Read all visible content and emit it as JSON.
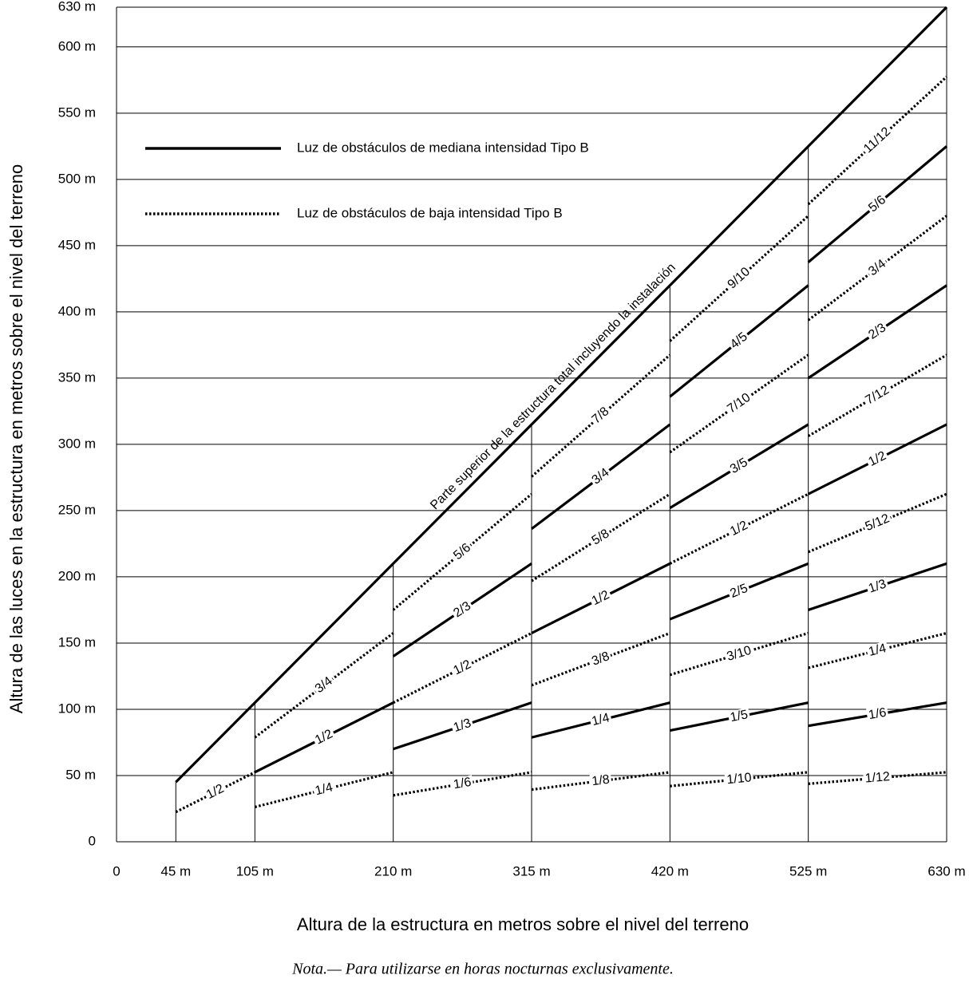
{
  "chart_data": {
    "type": "line",
    "y_label": "Altura de las luces en la estructura en metros sobre el nivel del terreno",
    "x_label": "Altura de la estructura en metros sobre el nivel del terreno",
    "note": "Nota.— Para utilizarse en horas nocturnas exclusivamente.",
    "xlim": [
      0,
      630
    ],
    "ylim": [
      0,
      630
    ],
    "xticks": [
      0,
      {
        "value": 45,
        "label": "45 m"
      },
      {
        "value": 105,
        "label": "105 m"
      },
      {
        "value": 210,
        "label": "210 m"
      },
      {
        "value": 315,
        "label": "315 m"
      },
      {
        "value": 420,
        "label": "420 m"
      },
      {
        "value": 525,
        "label": "525 m"
      },
      {
        "value": 630,
        "label": "630 m"
      }
    ],
    "yticks": [
      0,
      {
        "value": 50,
        "label": "50 m"
      },
      {
        "value": 100,
        "label": "100 m"
      },
      {
        "value": 150,
        "label": "150 m"
      },
      {
        "value": 200,
        "label": "200 m"
      },
      {
        "value": 250,
        "label": "250 m"
      },
      {
        "value": 300,
        "label": "300 m"
      },
      {
        "value": 350,
        "label": "350 m"
      },
      {
        "value": 400,
        "label": "400 m"
      },
      {
        "value": 450,
        "label": "450 m"
      },
      {
        "value": 500,
        "label": "500 m"
      },
      {
        "value": 550,
        "label": "550 m"
      },
      {
        "value": 600,
        "label": "600 m"
      },
      {
        "value": 630,
        "label": "630 m"
      }
    ],
    "grid": true,
    "series": [
      {
        "name": "Luz de obstáculos de mediana intensidad Tipo B",
        "color": "#000000",
        "style": "solid",
        "segments": [
          {
            "label": "Parte superior de la estructura total incluyendo la instalación",
            "x": [
              45,
              630
            ],
            "values": [
              45,
              630
            ]
          },
          {
            "label": "1/2",
            "x": [
              105,
              210
            ],
            "values": [
              52.5,
              105
            ]
          },
          {
            "label": "2/3",
            "x": [
              210,
              315
            ],
            "values": [
              140,
              210
            ]
          },
          {
            "label": "1/3",
            "x": [
              210,
              315
            ],
            "values": [
              70,
              105
            ]
          },
          {
            "label": "3/4",
            "x": [
              315,
              420
            ],
            "values": [
              236.25,
              315
            ]
          },
          {
            "label": "1/2",
            "x": [
              315,
              420
            ],
            "values": [
              157.5,
              210
            ]
          },
          {
            "label": "1/4",
            "x": [
              315,
              420
            ],
            "values": [
              78.75,
              105
            ]
          },
          {
            "label": "4/5",
            "x": [
              420,
              525
            ],
            "values": [
              336,
              420
            ]
          },
          {
            "label": "3/5",
            "x": [
              420,
              525
            ],
            "values": [
              252,
              315
            ]
          },
          {
            "label": "2/5",
            "x": [
              420,
              525
            ],
            "values": [
              168,
              210
            ]
          },
          {
            "label": "1/5",
            "x": [
              420,
              525
            ],
            "values": [
              84,
              105
            ]
          },
          {
            "label": "5/6",
            "x": [
              525,
              630
            ],
            "values": [
              437.5,
              525
            ]
          },
          {
            "label": "2/3",
            "x": [
              525,
              630
            ],
            "values": [
              350,
              420
            ]
          },
          {
            "label": "1/2",
            "x": [
              525,
              630
            ],
            "values": [
              262.5,
              315
            ]
          },
          {
            "label": "1/3",
            "x": [
              525,
              630
            ],
            "values": [
              175,
              210
            ]
          },
          {
            "label": "1/6",
            "x": [
              525,
              630
            ],
            "values": [
              87.5,
              105
            ]
          }
        ]
      },
      {
        "name": "Luz de obstáculos de baja intensidad Tipo B",
        "color": "#000000",
        "style": "dotted",
        "segments": [
          {
            "label": "1/2",
            "x": [
              45,
              105
            ],
            "values": [
              22.5,
              52.5
            ]
          },
          {
            "label": "3/4",
            "x": [
              105,
              210
            ],
            "values": [
              78.75,
              157.5
            ]
          },
          {
            "label": "1/4",
            "x": [
              105,
              210
            ],
            "values": [
              26.25,
              52.5
            ]
          },
          {
            "label": "5/6",
            "x": [
              210,
              315
            ],
            "values": [
              175,
              262.5
            ]
          },
          {
            "label": "1/2",
            "x": [
              210,
              315
            ],
            "values": [
              105,
              157.5
            ]
          },
          {
            "label": "1/6",
            "x": [
              210,
              315
            ],
            "values": [
              35,
              52.5
            ]
          },
          {
            "label": "7/8",
            "x": [
              315,
              420
            ],
            "values": [
              275.625,
              367.5
            ]
          },
          {
            "label": "5/8",
            "x": [
              315,
              420
            ],
            "values": [
              196.875,
              262.5
            ]
          },
          {
            "label": "3/8",
            "x": [
              315,
              420
            ],
            "values": [
              118.125,
              157.5
            ]
          },
          {
            "label": "1/8",
            "x": [
              315,
              420
            ],
            "values": [
              39.375,
              52.5
            ]
          },
          {
            "label": "9/10",
            "x": [
              420,
              525
            ],
            "values": [
              378,
              472.5
            ]
          },
          {
            "label": "7/10",
            "x": [
              420,
              525
            ],
            "values": [
              294,
              367.5
            ]
          },
          {
            "label": "1/2",
            "x": [
              420,
              525
            ],
            "values": [
              210,
              262.5
            ]
          },
          {
            "label": "3/10",
            "x": [
              420,
              525
            ],
            "values": [
              126,
              157.5
            ]
          },
          {
            "label": "1/10",
            "x": [
              420,
              525
            ],
            "values": [
              42,
              52.5
            ]
          },
          {
            "label": "11/12",
            "x": [
              525,
              630
            ],
            "values": [
              481.25,
              577.5
            ]
          },
          {
            "label": "3/4",
            "x": [
              525,
              630
            ],
            "values": [
              393.75,
              472.5
            ]
          },
          {
            "label": "7/12",
            "x": [
              525,
              630
            ],
            "values": [
              306.25,
              367.5
            ]
          },
          {
            "label": "5/12",
            "x": [
              525,
              630
            ],
            "values": [
              218.75,
              262.5
            ]
          },
          {
            "label": "1/4",
            "x": [
              525,
              630
            ],
            "values": [
              131.25,
              157.5
            ]
          },
          {
            "label": "1/12",
            "x": [
              525,
              630
            ],
            "values": [
              43.75,
              52.5
            ]
          }
        ]
      }
    ]
  }
}
